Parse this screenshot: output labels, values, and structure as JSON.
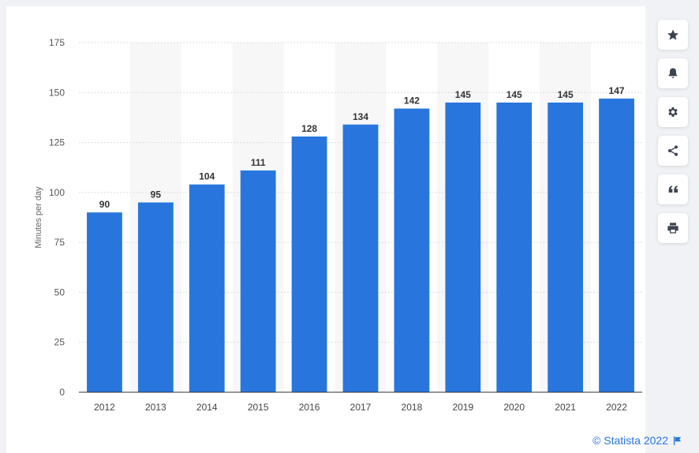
{
  "chart_data": {
    "type": "bar",
    "categories": [
      "2012",
      "2013",
      "2014",
      "2015",
      "2016",
      "2017",
      "2018",
      "2019",
      "2020",
      "2021",
      "2022"
    ],
    "values": [
      90,
      95,
      104,
      111,
      128,
      134,
      142,
      145,
      145,
      145,
      147
    ],
    "data_labels": [
      "90",
      "95",
      "104",
      "111",
      "128",
      "134",
      "142",
      "145",
      "145",
      "145",
      "147"
    ],
    "ylabel": "Minutes per day",
    "ylim": [
      0,
      175
    ],
    "yticks": [
      "0",
      "25",
      "50",
      "75",
      "100",
      "125",
      "150",
      "175"
    ],
    "grid": true,
    "bar_color": "#2876dd",
    "alternate_band_color": "#f7f7f7"
  },
  "sidebar": {
    "items": [
      {
        "icon": "star-icon"
      },
      {
        "icon": "bell-icon"
      },
      {
        "icon": "gear-icon"
      },
      {
        "icon": "share-icon"
      },
      {
        "icon": "quote-icon"
      },
      {
        "icon": "print-icon"
      }
    ]
  },
  "credit": {
    "text": "© Statista 2022",
    "icon": "flag-icon"
  }
}
